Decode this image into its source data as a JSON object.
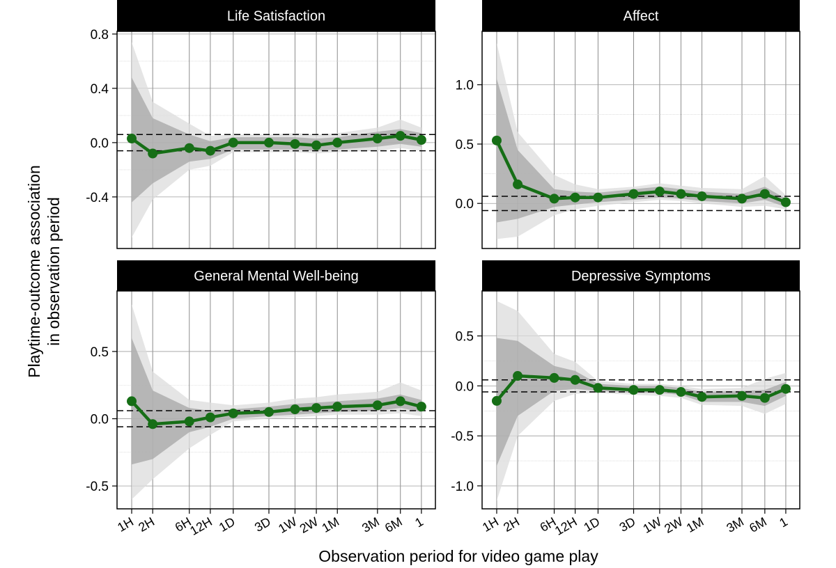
{
  "figure": {
    "ylabel_line1": "Playtime-outcome association",
    "ylabel_line2": "in observation period",
    "xlabel": "Observation period for video game play",
    "colors": {
      "line": "#166e16",
      "ci_inner": "#a6a6a6",
      "ci_outer": "#dcdcdc",
      "strip": "#000000",
      "strip_text": "#ffffff"
    }
  },
  "chart_data": [
    {
      "type": "line",
      "title": "Life Satisfaction",
      "x": [
        "1H",
        "2H",
        "6H",
        "12H",
        "1D",
        "3D",
        "1W",
        "2W",
        "1M",
        "3M",
        "6M",
        "1"
      ],
      "series": [
        {
          "values": [
            0.03,
            -0.08,
            -0.04,
            -0.06,
            0.0,
            0.0,
            -0.01,
            -0.02,
            0.0,
            0.03,
            0.05,
            0.02
          ]
        }
      ],
      "ci_inner": {
        "lower": [
          -0.44,
          -0.3,
          -0.14,
          -0.12,
          -0.05,
          -0.05,
          -0.05,
          -0.06,
          -0.05,
          -0.03,
          -0.01,
          -0.03
        ],
        "upper": [
          0.48,
          0.18,
          0.06,
          0.01,
          0.04,
          0.04,
          0.04,
          0.03,
          0.04,
          0.08,
          0.1,
          0.07
        ]
      },
      "ci_outer": {
        "lower": [
          -0.7,
          -0.42,
          -0.2,
          -0.17,
          -0.07,
          -0.07,
          -0.07,
          -0.08,
          -0.07,
          -0.06,
          -0.04,
          -0.06
        ],
        "upper": [
          0.74,
          0.3,
          0.14,
          0.05,
          0.06,
          0.06,
          0.07,
          0.06,
          0.07,
          0.11,
          0.17,
          0.11
        ]
      },
      "reference_lines": [
        -0.06,
        0.06
      ],
      "ylim": [
        -0.78,
        0.82
      ],
      "yticks": [
        0.8,
        0.4,
        0.0,
        -0.4
      ],
      "ytick_labels": [
        "0.8",
        "0.4",
        "0.0",
        "-0.4"
      ],
      "grid": true
    },
    {
      "type": "line",
      "title": "Affect",
      "x": [
        "1H",
        "2H",
        "6H",
        "12H",
        "1D",
        "3D",
        "1W",
        "2W",
        "1M",
        "3M",
        "6M",
        "1"
      ],
      "series": [
        {
          "values": [
            0.53,
            0.16,
            0.04,
            0.05,
            0.05,
            0.08,
            0.1,
            0.08,
            0.06,
            0.04,
            0.08,
            0.01
          ]
        }
      ],
      "ci_inner": {
        "lower": [
          -0.16,
          -0.13,
          -0.03,
          -0.01,
          0.01,
          0.03,
          0.05,
          0.04,
          0.02,
          0.0,
          0.03,
          -0.03
        ],
        "upper": [
          1.05,
          0.45,
          0.12,
          0.1,
          0.09,
          0.12,
          0.14,
          0.12,
          0.1,
          0.08,
          0.14,
          0.04
        ]
      },
      "ci_outer": {
        "lower": [
          -0.3,
          -0.28,
          -0.1,
          -0.05,
          -0.02,
          0.01,
          0.03,
          0.02,
          0.0,
          -0.03,
          -0.02,
          -0.05
        ],
        "upper": [
          1.35,
          0.6,
          0.24,
          0.16,
          0.12,
          0.14,
          0.17,
          0.15,
          0.13,
          0.12,
          0.23,
          0.07
        ]
      },
      "reference_lines": [
        -0.06,
        0.06
      ],
      "ylim": [
        -0.38,
        1.45
      ],
      "yticks": [
        1.0,
        0.5,
        0.0
      ],
      "ytick_labels": [
        "1.0",
        "0.5",
        "0.0"
      ],
      "grid": true
    },
    {
      "type": "line",
      "title": "General Mental Well-being",
      "x": [
        "1H",
        "2H",
        "6H",
        "12H",
        "1D",
        "3D",
        "1W",
        "2W",
        "1M",
        "3M",
        "6M",
        "1"
      ],
      "series": [
        {
          "values": [
            0.13,
            -0.04,
            -0.02,
            0.01,
            0.04,
            0.05,
            0.07,
            0.08,
            0.09,
            0.1,
            0.13,
            0.09
          ]
        }
      ],
      "ci_inner": {
        "lower": [
          -0.34,
          -0.3,
          -0.1,
          -0.06,
          0.0,
          0.02,
          0.03,
          0.04,
          0.05,
          0.06,
          0.08,
          0.05
        ],
        "upper": [
          0.6,
          0.21,
          0.08,
          0.06,
          0.07,
          0.09,
          0.11,
          0.12,
          0.13,
          0.15,
          0.18,
          0.14
        ]
      },
      "ci_outer": {
        "lower": [
          -0.6,
          -0.45,
          -0.22,
          -0.12,
          -0.02,
          0.0,
          0.01,
          0.02,
          0.03,
          0.03,
          0.04,
          0.02
        ],
        "upper": [
          0.85,
          0.35,
          0.14,
          0.12,
          0.1,
          0.12,
          0.15,
          0.16,
          0.18,
          0.2,
          0.27,
          0.21
        ]
      },
      "reference_lines": [
        -0.06,
        0.06
      ],
      "ylim": [
        -0.67,
        0.95
      ],
      "yticks": [
        0.5,
        0.0,
        -0.5
      ],
      "ytick_labels": [
        "0.5",
        "0.0",
        "-0.5"
      ],
      "grid": true
    },
    {
      "type": "line",
      "title": "Depressive Symptoms",
      "x": [
        "1H",
        "2H",
        "6H",
        "12H",
        "1D",
        "3D",
        "1W",
        "2W",
        "1M",
        "3M",
        "6M",
        "1"
      ],
      "series": [
        {
          "values": [
            -0.15,
            0.1,
            0.08,
            0.06,
            -0.02,
            -0.04,
            -0.04,
            -0.06,
            -0.11,
            -0.1,
            -0.12,
            -0.03
          ]
        }
      ],
      "ci_inner": {
        "lower": [
          -0.8,
          -0.3,
          -0.05,
          -0.03,
          -0.05,
          -0.07,
          -0.07,
          -0.09,
          -0.16,
          -0.16,
          -0.2,
          -0.1
        ],
        "upper": [
          0.48,
          0.45,
          0.2,
          0.15,
          0.02,
          0.0,
          0.0,
          -0.02,
          -0.06,
          -0.05,
          -0.04,
          0.04
        ]
      },
      "ci_outer": {
        "lower": [
          -1.15,
          -0.5,
          -0.15,
          -0.08,
          -0.07,
          -0.09,
          -0.1,
          -0.12,
          -0.19,
          -0.2,
          -0.28,
          -0.18
        ],
        "upper": [
          0.85,
          0.75,
          0.32,
          0.24,
          0.05,
          0.02,
          0.02,
          0.0,
          -0.03,
          -0.02,
          0.07,
          0.13
        ]
      },
      "reference_lines": [
        -0.06,
        0.06
      ],
      "ylim": [
        -1.23,
        0.95
      ],
      "yticks": [
        0.5,
        0.0,
        -0.5,
        -1.0
      ],
      "ytick_labels": [
        "0.5",
        "0.0",
        "-0.5",
        "-1.0"
      ],
      "grid": true
    }
  ]
}
